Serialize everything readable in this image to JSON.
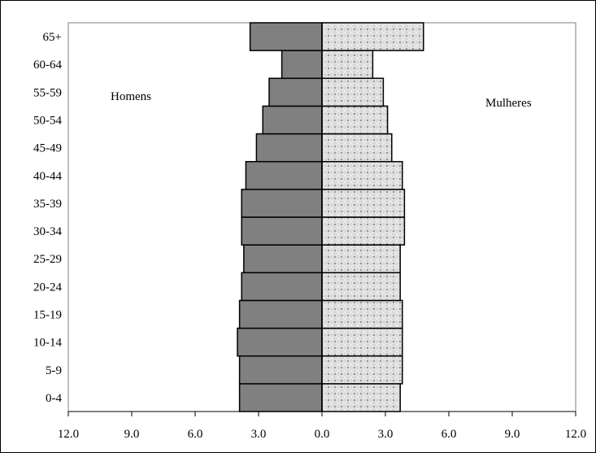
{
  "chart_data": {
    "type": "bar",
    "orientation": "horizontal",
    "title": "",
    "xlabel": "",
    "ylabel": "",
    "xlim": [
      -12,
      12
    ],
    "x_ticks": [
      -12,
      -9,
      -6,
      -3,
      0,
      3,
      6,
      9,
      12
    ],
    "x_tick_labels": [
      "12.0",
      "9.0",
      "6.0",
      "3.0",
      "0.0",
      "3.0",
      "6.0",
      "9.0",
      "12.0"
    ],
    "categories": [
      "0-4",
      "5-9",
      "10-14",
      "15-19",
      "20-24",
      "25-29",
      "30-34",
      "35-39",
      "40-44",
      "45-49",
      "50-54",
      "55-59",
      "60-64",
      "65+"
    ],
    "series": [
      {
        "name": "Homens",
        "side": "left",
        "color": "#808080",
        "values": [
          3.9,
          3.9,
          4.0,
          3.9,
          3.8,
          3.7,
          3.8,
          3.8,
          3.6,
          3.1,
          2.8,
          2.5,
          1.9,
          3.4
        ]
      },
      {
        "name": "Mulheres",
        "side": "right",
        "color": "#d9d9d9",
        "values": [
          3.7,
          3.8,
          3.8,
          3.8,
          3.7,
          3.7,
          3.9,
          3.9,
          3.8,
          3.3,
          3.1,
          2.9,
          2.4,
          4.8
        ]
      }
    ],
    "grid": false,
    "legend": "none"
  }
}
